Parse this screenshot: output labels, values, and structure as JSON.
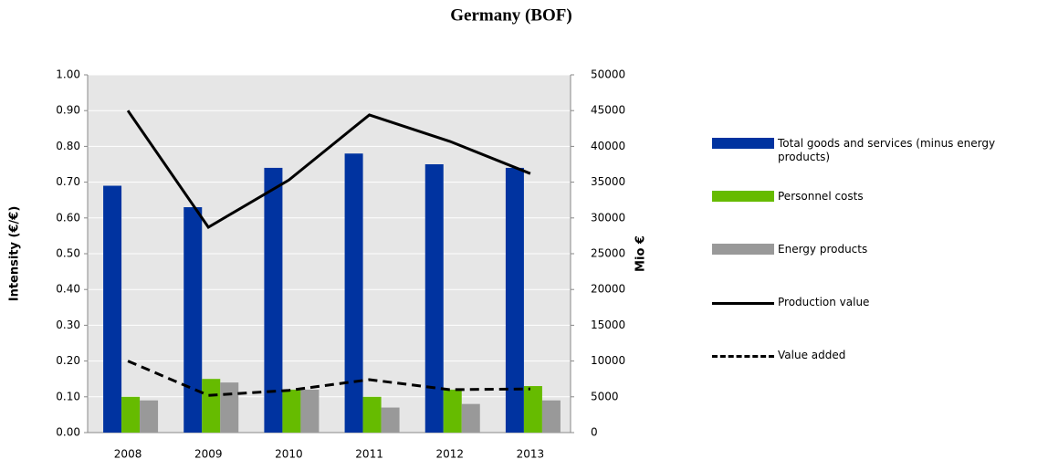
{
  "chart_data": {
    "type": "bar-line",
    "title": "Germany (BOF)",
    "y_label": "Intensity (€/€)",
    "y2_label": "Mio €",
    "categories": [
      "2008",
      "2009",
      "2010",
      "2011",
      "2012",
      "2013"
    ],
    "series": [
      {
        "name": "Total goods and services (minus energy products)",
        "type": "bar",
        "color": "#0033a0",
        "values": [
          0.69,
          0.63,
          0.74,
          0.78,
          0.75,
          0.74
        ]
      },
      {
        "name": "Personnel costs",
        "type": "bar",
        "color": "#66bb00",
        "values": [
          0.1,
          0.15,
          0.12,
          0.1,
          0.12,
          0.13
        ]
      },
      {
        "name": "Energy products",
        "type": "bar",
        "color": "#999999",
        "values": [
          0.09,
          0.14,
          0.12,
          0.07,
          0.08,
          0.09
        ]
      },
      {
        "name": "Production value",
        "type": "line",
        "axis": "y2",
        "color": "#000000",
        "style": "solid",
        "values": [
          45000,
          28700,
          35300,
          44400,
          40700,
          36200
        ]
      },
      {
        "name": "Value added",
        "type": "line",
        "axis": "y2",
        "color": "#000000",
        "style": "dashed",
        "values": [
          10000,
          5200,
          5900,
          7400,
          6000,
          6100
        ]
      }
    ],
    "ylim": [
      0,
      1
    ],
    "yticks": [
      {
        "value": 0,
        "label": "0.00"
      },
      {
        "value": 0.1,
        "label": "0.10"
      },
      {
        "value": 0.2,
        "label": "0.20"
      },
      {
        "value": 0.3,
        "label": "0.30"
      },
      {
        "value": 0.4,
        "label": "0.40"
      },
      {
        "value": 0.5,
        "label": "0.50"
      },
      {
        "value": 0.6,
        "label": "0.60"
      },
      {
        "value": 0.7,
        "label": "0.70"
      },
      {
        "value": 0.8,
        "label": "0.80"
      },
      {
        "value": 0.9,
        "label": "0.90"
      },
      {
        "value": 1,
        "label": "1.00"
      }
    ],
    "y2lim": [
      0,
      50000
    ],
    "y2ticks": [
      0,
      5000,
      10000,
      15000,
      20000,
      25000,
      30000,
      35000,
      40000,
      45000,
      50000
    ],
    "grid": true,
    "legend": "right"
  }
}
